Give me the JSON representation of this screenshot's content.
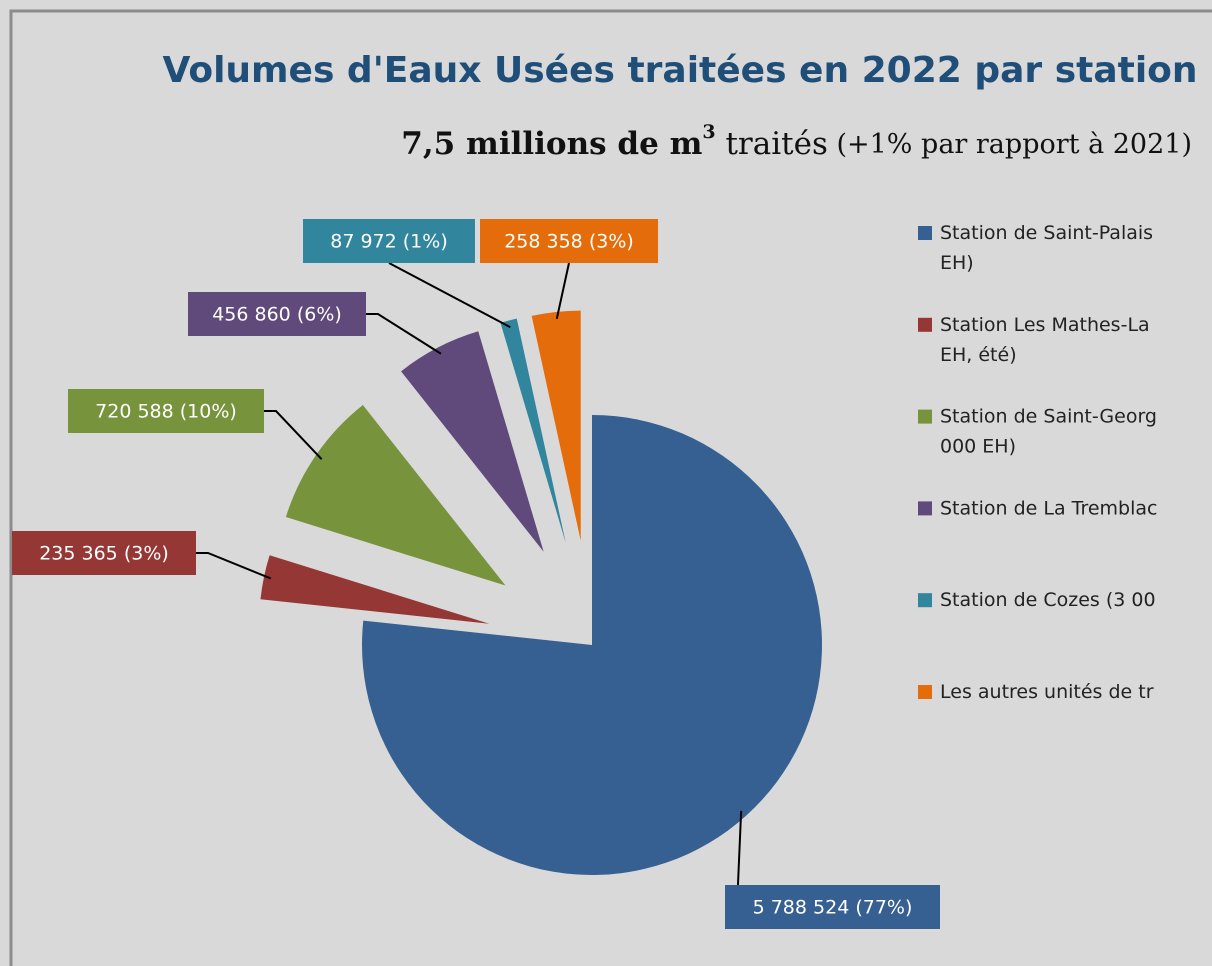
{
  "chart_data": {
    "type": "pie",
    "title": "Volumes d'Eaux Usées traitées en 2022 par station",
    "subtitle": {
      "bold": "7,5 millions de m",
      "sup": "3",
      "normal": " traités",
      "note": " (+1% par rapport à 2021)"
    },
    "categories": [
      "Station de Saint-Palais\nEH)",
      "Station Les Mathes-La\nEH, été)",
      "Station de Saint-Georg\n000 EH)",
      "Station de La Tremblac",
      "Station de Cozes (3 00",
      "Les autres unités de tr"
    ],
    "values": [
      5788524,
      235365,
      720588,
      456860,
      87972,
      258358
    ],
    "value_labels": [
      "5 788 524 (77%)",
      "235 365 (3%)",
      "720 588 (10%)",
      "456 860 (6%)",
      "87 972 (1%)",
      "258 358 (3%)"
    ],
    "colors": [
      "#376092",
      "#953735",
      "#77933c",
      "#604a7b",
      "#31859c",
      "#e46c0a"
    ],
    "legend": "right"
  }
}
